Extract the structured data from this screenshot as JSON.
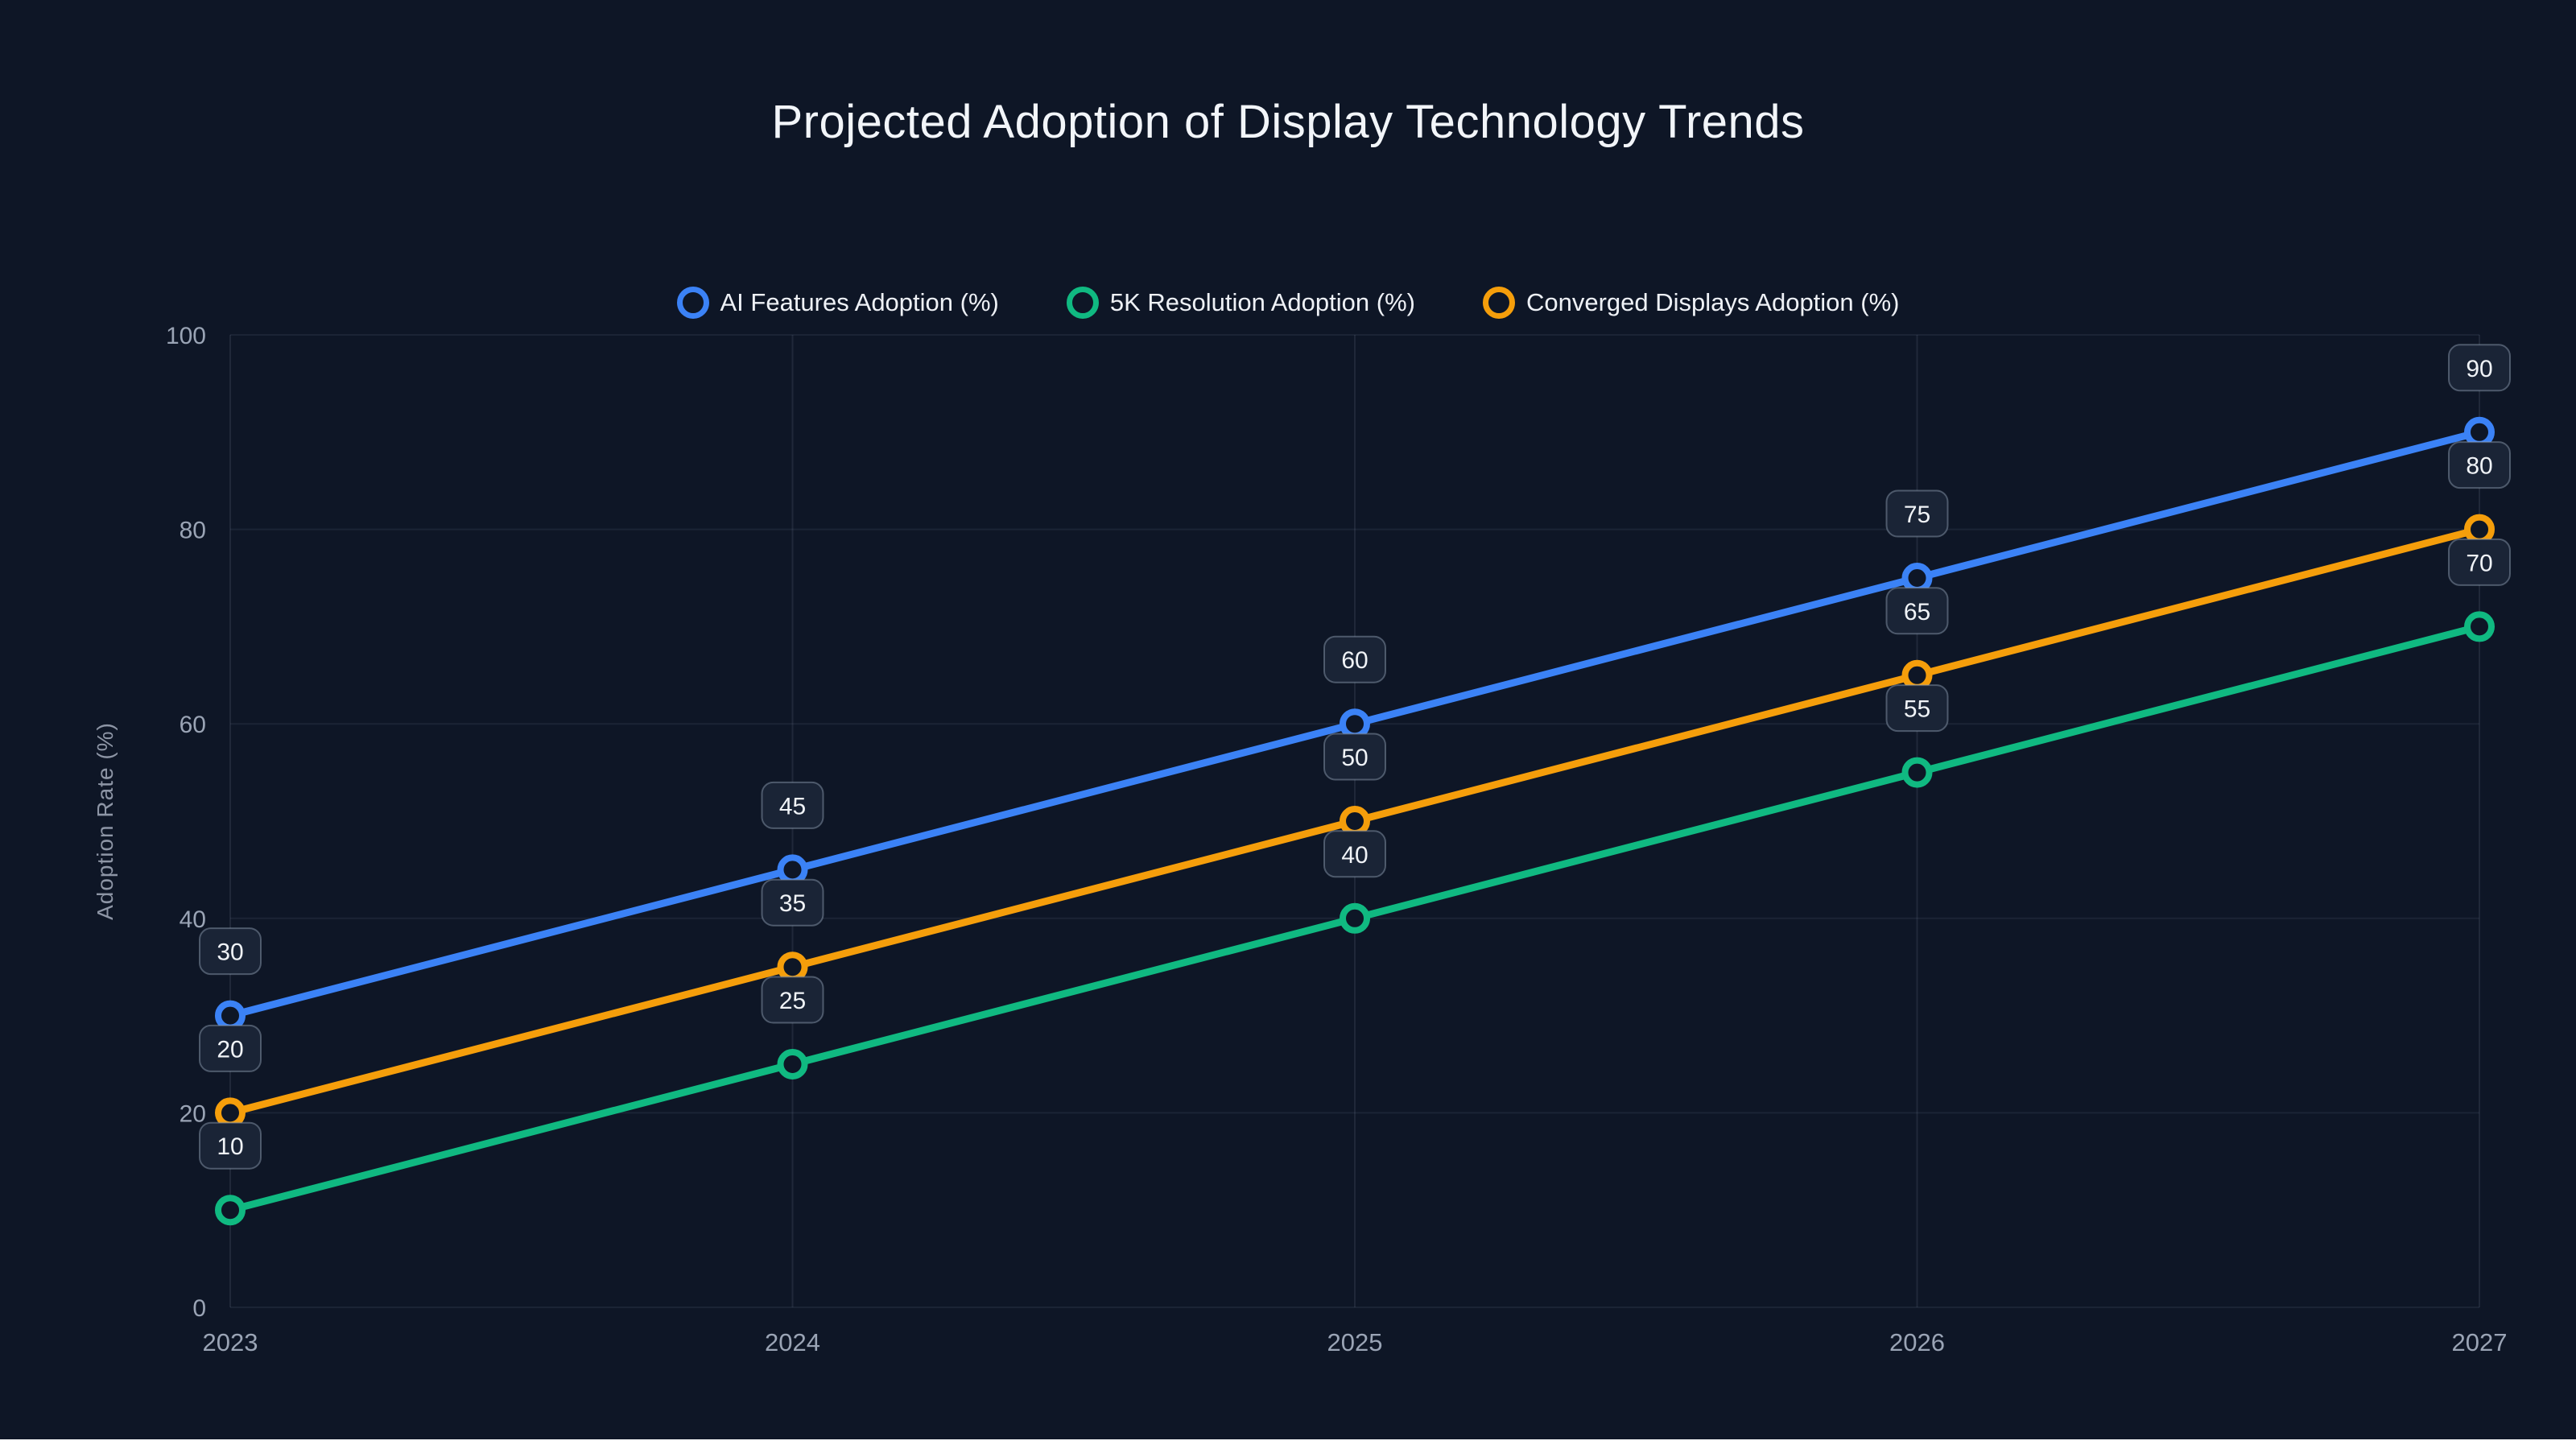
{
  "chart_data": {
    "type": "line",
    "title": "Projected Adoption of Display Technology Trends",
    "ylabel": "Adoption Rate (%)",
    "x": [
      "2023",
      "2024",
      "2025",
      "2026",
      "2027"
    ],
    "yticks": [
      0,
      20,
      40,
      60,
      80,
      100
    ],
    "ylim": [
      0,
      100
    ],
    "grid": true,
    "legend_position": "top",
    "point_labels_visible": true,
    "series": [
      {
        "name": "AI Features Adoption (%)",
        "color": "#3b82f6",
        "values": [
          30,
          45,
          60,
          75,
          90
        ]
      },
      {
        "name": "5K Resolution Adoption (%)",
        "color": "#10b981",
        "values": [
          10,
          25,
          40,
          55,
          70
        ]
      },
      {
        "name": "Converged Displays Adoption (%)",
        "color": "#f59e0b",
        "values": [
          20,
          35,
          50,
          65,
          80
        ]
      }
    ]
  }
}
